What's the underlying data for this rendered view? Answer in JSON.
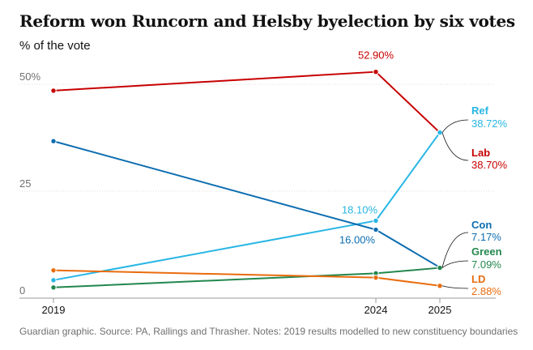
{
  "header": {
    "title": "Reform won Runcorn and Helsby byelection by six votes",
    "subtitle": "% of the vote"
  },
  "footer": {
    "source": "Guardian graphic. Source: PA, Rallings and Thrasher. Notes: 2019 results modelled to new constituency boundaries"
  },
  "chart_data": {
    "type": "line",
    "title": "Reform won Runcorn and Helsby byelection by six votes",
    "subtitle": "% of the vote",
    "x": [
      2019,
      2024,
      2025
    ],
    "xlim": [
      2019,
      2025
    ],
    "ylim": [
      0,
      50
    ],
    "y_ticks": [
      0,
      25,
      50
    ],
    "y_tick_labels": [
      "0",
      "25",
      "50%"
    ],
    "grid": true,
    "series": [
      {
        "name": "Lab",
        "color": "#c70000",
        "values": [
          48.5,
          52.9,
          38.7
        ],
        "end_label": "38.70%",
        "annotations": [
          {
            "index": 1,
            "text": "52.90%"
          }
        ]
      },
      {
        "name": "Ref",
        "color": "#27b6e5",
        "values": [
          4.2,
          18.1,
          38.72
        ],
        "end_label": "38.72%",
        "annotations": [
          {
            "index": 1,
            "text": "18.10%"
          }
        ]
      },
      {
        "name": "Con",
        "color": "#0c6db0",
        "values": [
          36.7,
          16.0,
          7.17
        ],
        "end_label": "7.17%",
        "annotations": [
          {
            "index": 1,
            "text": "16.00%"
          }
        ]
      },
      {
        "name": "Green",
        "color": "#22874d",
        "values": [
          2.5,
          5.8,
          7.09
        ],
        "end_label": "7.09%"
      },
      {
        "name": "LD",
        "color": "#e96c0e",
        "values": [
          6.5,
          4.8,
          2.88
        ],
        "end_label": "2.88%"
      }
    ]
  }
}
